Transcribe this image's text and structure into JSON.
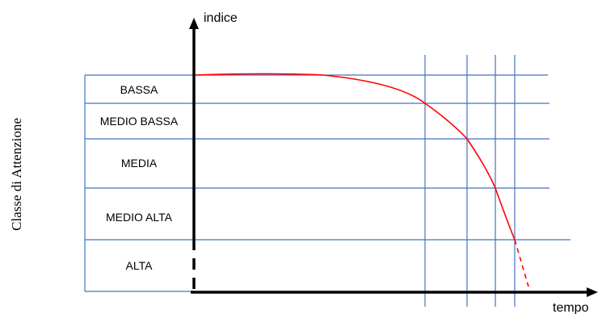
{
  "diagram": {
    "y_axis_title": "Classe di Attenzione",
    "y_axis_label": "indice",
    "x_axis_label": "tempo",
    "bands": [
      {
        "label": "BASSA"
      },
      {
        "label": "MEDIO BASSA"
      },
      {
        "label": "MEDIA"
      },
      {
        "label": "MEDIO ALTA"
      },
      {
        "label": "ALTA"
      }
    ],
    "colors": {
      "grid_lines": "#4472c4",
      "curve": "#ff0000",
      "axes": "#000000"
    },
    "curve_style": "solid red curve declining through the bands, dashed continuation below ALTA",
    "vertical_markers_count": 4
  }
}
